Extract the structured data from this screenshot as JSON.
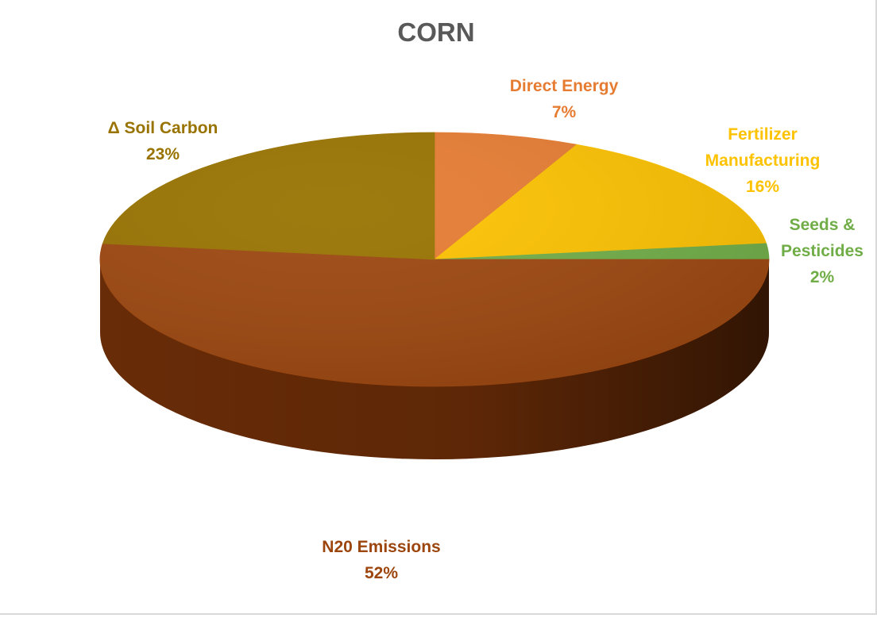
{
  "chart_data": {
    "type": "pie",
    "title": "CORN",
    "style": "3d-pie",
    "start_angle_deg": 0,
    "direction": "clockwise",
    "slices": [
      {
        "label": "Direct Energy",
        "value": 7,
        "value_label": "7%",
        "color": "#E67C32",
        "side_color": "#a9541b"
      },
      {
        "label": "Fertilizer Manufacturing",
        "label_lines": [
          "Fertilizer",
          "Manufacturing"
        ],
        "value": 16,
        "value_label": "16%",
        "color": "#FDC200",
        "side_color": "#b78c00"
      },
      {
        "label": "Seeds & Pesticides",
        "label_lines": [
          "Seeds &",
          "Pesticides"
        ],
        "value": 2,
        "value_label": "2%",
        "color": "#70AD47",
        "side_color": "#4c7a2f"
      },
      {
        "label": "N20 Emissions",
        "value": 52,
        "value_label": "52%",
        "color": "#9C460E",
        "side_color": "#6e2e08"
      },
      {
        "label": "Δ Soil Carbon",
        "value": 23,
        "value_label": "23%",
        "color": "#987300",
        "side_color": "#6b5100"
      }
    ]
  }
}
